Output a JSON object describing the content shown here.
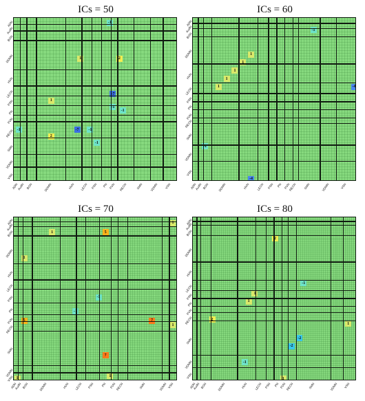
{
  "chart_data": [
    {
      "type": "heatmap",
      "title": "ICs = 50",
      "n": 50,
      "labels": [
        "ADN",
        "AudN",
        "BGN",
        "DDMN",
        "HVN",
        "LECN",
        "PSN",
        "PN",
        "PVN",
        "RECN",
        "SMN",
        "VDMN",
        "VSN"
      ],
      "boundaries": [
        0,
        2,
        4,
        7,
        16,
        21,
        24,
        27,
        30,
        32,
        37,
        42,
        46,
        50
      ],
      "cells": [
        {
          "r": 1,
          "c": 29,
          "v": -1
        },
        {
          "r": 12,
          "c": 20,
          "v": 1
        },
        {
          "r": 12,
          "c": 32,
          "v": 2
        },
        {
          "r": 23,
          "c": 30,
          "v": -7
        },
        {
          "r": 25,
          "c": 11,
          "v": 1
        },
        {
          "r": 27,
          "c": 30,
          "v": -1
        },
        {
          "r": 28,
          "c": 33,
          "v": -1
        },
        {
          "r": 34,
          "c": 1,
          "v": -1
        },
        {
          "r": 34,
          "c": 19,
          "v": -7
        },
        {
          "r": 34,
          "c": 23,
          "v": -1
        },
        {
          "r": 36,
          "c": 11,
          "v": 2
        },
        {
          "r": 38,
          "c": 25,
          "v": -1
        }
      ]
    },
    {
      "type": "heatmap",
      "title": "ICs = 60",
      "n": 60,
      "labels": [
        "ADN",
        "AudN",
        "BGN",
        "DDMN",
        "HVN",
        "LECN",
        "PSN",
        "PN",
        "PVN",
        "RECN",
        "SMN",
        "VDMN",
        "VSN"
      ],
      "boundaries": [
        0,
        2,
        4,
        7,
        17,
        24,
        28,
        31,
        34,
        37,
        39,
        47,
        53,
        60
      ],
      "cells": [
        {
          "r": 4,
          "c": 44,
          "v": -1
        },
        {
          "r": 13,
          "c": 21,
          "v": 1
        },
        {
          "r": 16,
          "c": 18,
          "v": 1
        },
        {
          "r": 19,
          "c": 15,
          "v": 1
        },
        {
          "r": 22,
          "c": 12,
          "v": 1
        },
        {
          "r": 25,
          "c": 9,
          "v": 1
        },
        {
          "r": 25,
          "c": 59,
          "v": -4
        },
        {
          "r": 47,
          "c": 4,
          "v": -1
        },
        {
          "r": 59,
          "c": 21,
          "v": -4
        }
      ]
    },
    {
      "type": "heatmap",
      "title": "ICs = 70",
      "n": 70,
      "labels": [
        "ADN",
        "AudN",
        "BGN",
        "DDMN",
        "HVN",
        "LECN",
        "PSN",
        "PN",
        "PVN",
        "RECN",
        "SMN",
        "VDMN",
        "VSN"
      ],
      "boundaries": [
        0,
        2,
        4,
        8,
        20,
        27,
        31,
        37,
        42,
        45,
        49,
        64,
        67,
        70
      ],
      "cells": [
        {
          "r": 2,
          "c": 68,
          "v": 1
        },
        {
          "r": 6,
          "c": 16,
          "v": 1
        },
        {
          "r": 6,
          "c": 39,
          "v": 5
        },
        {
          "r": 17,
          "c": 4,
          "v": 1
        },
        {
          "r": 34,
          "c": 36,
          "v": -1
        },
        {
          "r": 40,
          "c": 26,
          "v": -1
        },
        {
          "r": 44,
          "c": 4,
          "v": 5
        },
        {
          "r": 44,
          "c": 59,
          "v": 7
        },
        {
          "r": 46,
          "c": 68,
          "v": 1
        },
        {
          "r": 59,
          "c": 39,
          "v": 7
        },
        {
          "r": 68,
          "c": 41,
          "v": 1
        },
        {
          "r": 69,
          "c": 1,
          "v": 1
        }
      ]
    },
    {
      "type": "heatmap",
      "title": "ICs = 80",
      "n": 80,
      "labels": [
        "ADN",
        "AudN",
        "BGN",
        "DDMN",
        "HVN",
        "LECN",
        "PSN",
        "PN",
        "PVN",
        "RECN",
        "SMN",
        "VDMN",
        "VSN"
      ],
      "boundaries": [
        0,
        2,
        4,
        9,
        22,
        31,
        36,
        40,
        44,
        47,
        51,
        68,
        74,
        80
      ],
      "cells": [
        {
          "r": 10,
          "c": 40,
          "v": 2
        },
        {
          "r": 32,
          "c": 54,
          "v": -1
        },
        {
          "r": 37,
          "c": 30,
          "v": 1
        },
        {
          "r": 41,
          "c": 27,
          "v": 1
        },
        {
          "r": 50,
          "c": 9,
          "v": 2
        },
        {
          "r": 52,
          "c": 76,
          "v": 1
        },
        {
          "r": 59,
          "c": 52,
          "v": -2
        },
        {
          "r": 63,
          "c": 48,
          "v": -2
        },
        {
          "r": 71,
          "c": 25,
          "v": -1
        },
        {
          "r": 79,
          "c": 44,
          "v": 1
        }
      ]
    }
  ]
}
